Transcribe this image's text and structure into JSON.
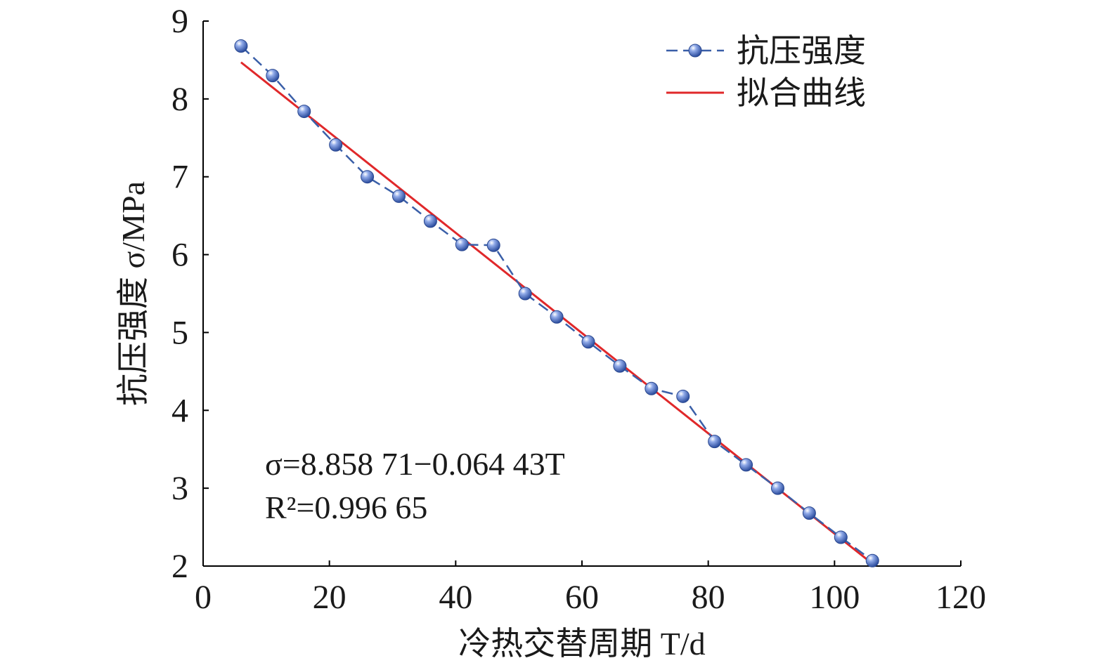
{
  "chart_data": {
    "type": "line",
    "xlabel": "冷热交替周期 T/d",
    "ylabel": "抗压强度 σ/MPa",
    "xlim": [
      0,
      120
    ],
    "ylim": [
      2,
      9
    ],
    "x_ticks": [
      "0",
      "20",
      "40",
      "60",
      "80",
      "100",
      "120"
    ],
    "y_ticks": [
      "2",
      "3",
      "4",
      "5",
      "6",
      "7",
      "8",
      "9"
    ],
    "grid": false,
    "legend_position": "top-right",
    "series": [
      {
        "name": "抗压强度",
        "style": "line-markers",
        "color": "#3a5fa8",
        "x": [
          6,
          11,
          16,
          21,
          26,
          31,
          36,
          41,
          46,
          51,
          56,
          61,
          66,
          71,
          76,
          81,
          86,
          91,
          96,
          101,
          106
        ],
        "y": [
          8.68,
          8.3,
          7.84,
          7.41,
          7.0,
          6.75,
          6.43,
          6.13,
          6.12,
          5.5,
          5.2,
          4.88,
          4.57,
          4.28,
          4.18,
          3.6,
          3.3,
          3.0,
          2.68,
          2.37,
          2.07
        ]
      },
      {
        "name": "拟合曲线",
        "style": "line",
        "color": "#e0282a",
        "x": [
          6,
          106
        ],
        "y": [
          8.47,
          2.03
        ]
      }
    ],
    "annotations": {
      "equation": "σ=8.858 71−0.064 43T",
      "r_squared": "R²=0.996 65"
    }
  }
}
